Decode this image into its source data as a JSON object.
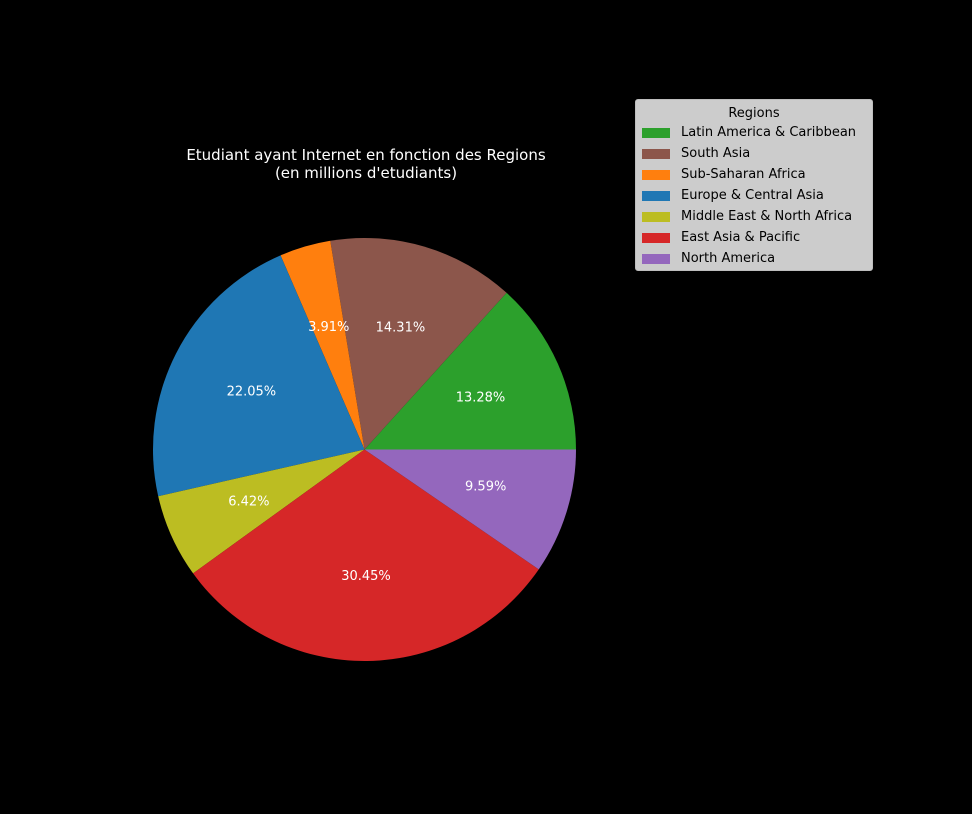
{
  "chart_data": {
    "type": "pie",
    "title": "Etudiant ayant Internet en fonction des Regions",
    "subtitle": "(en millions d'etudiants)",
    "legend": {
      "title": "Regions",
      "placement": "top-right"
    },
    "slices": [
      {
        "name": "Latin America & Caribbean",
        "value": 13.28,
        "label": "13.28%",
        "color": "#2ca02c"
      },
      {
        "name": "South Asia",
        "value": 14.31,
        "label": "14.31%",
        "color": "#8c564b"
      },
      {
        "name": "Sub-Saharan Africa",
        "value": 3.91,
        "label": "3.91%",
        "color": "#ff7f0e"
      },
      {
        "name": "Europe & Central Asia",
        "value": 22.05,
        "label": "22.05%",
        "color": "#1f77b4"
      },
      {
        "name": "Middle East & North Africa",
        "value": 6.42,
        "label": "6.42%",
        "color": "#bcbd22"
      },
      {
        "name": "East Asia & Pacific",
        "value": 30.45,
        "label": "30.45%",
        "color": "#d62728"
      },
      {
        "name": "North America",
        "value": 9.59,
        "label": "9.59%",
        "color": "#9467bd"
      }
    ]
  }
}
